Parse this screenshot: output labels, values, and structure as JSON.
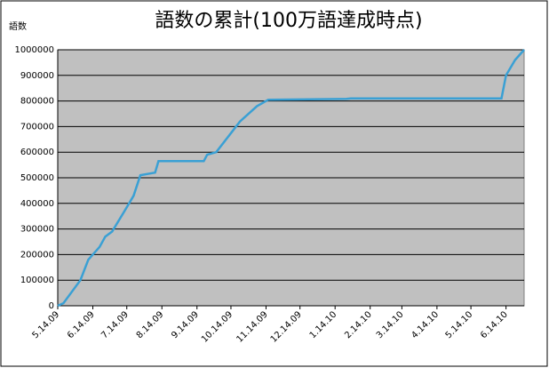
{
  "chart_data": {
    "type": "line",
    "title": "語数の累計(100万語達成時点)",
    "y_label": "語数",
    "x": [
      "5.14.09",
      "5.19.09",
      "6.3.09",
      "6.10.09",
      "6.20.09",
      "6.25.09",
      "7.1.09",
      "7.12.09",
      "7.20.09",
      "7.26.09",
      "8.8.09",
      "8.11.09",
      "9.20.09",
      "9.23.09",
      "10.1.09",
      "10.15.09",
      "10.22.09",
      "11.6.09",
      "11.16.09",
      "1.24.10",
      "1.28.10",
      "6.10.10",
      "6.14.10",
      "6.22.10",
      "6.30.10"
    ],
    "values": [
      0,
      10000,
      100000,
      180000,
      230000,
      270000,
      290000,
      370000,
      430000,
      510000,
      520000,
      565000,
      565000,
      590000,
      600000,
      680000,
      720000,
      780000,
      805000,
      808000,
      810000,
      810000,
      900000,
      960000,
      1000000
    ],
    "color": "#3aa0d4",
    "xlim": [
      "5.14.09",
      "6.30.10"
    ],
    "xticks": [
      "5.14.09",
      "6.14.09",
      "7.14.09",
      "8.14.09",
      "9.14.09",
      "10.14.09",
      "11.14.09",
      "12.14.09",
      "1.14.10",
      "2.14.10",
      "3.14.10",
      "4.14.10",
      "5.14.10",
      "6.14.10"
    ],
    "ylim": [
      0,
      1000000
    ],
    "yticks": [
      0,
      100000,
      200000,
      300000,
      400000,
      500000,
      600000,
      700000,
      800000,
      900000,
      1000000
    ],
    "grid": true
  }
}
